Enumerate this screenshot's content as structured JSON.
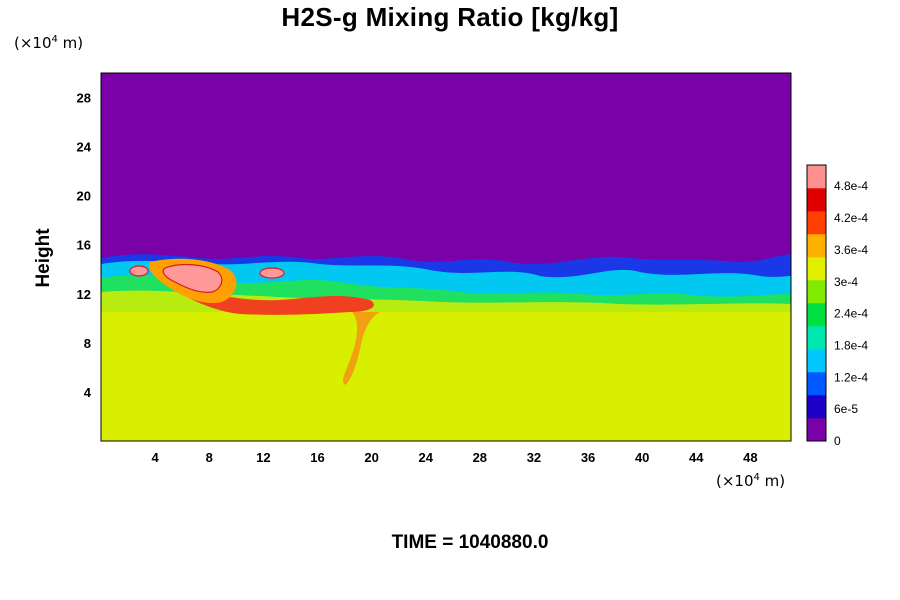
{
  "chart_data": {
    "type": "heatmap",
    "title": "H2S-g Mixing Ratio [kg/kg]",
    "ylabel": "Height",
    "x_unit_prefix": "(×10",
    "x_unit_exp": "4",
    "x_unit_suffix": " m)",
    "y_unit_prefix": "(×10",
    "y_unit_exp": "4",
    "y_unit_suffix": " m)",
    "x_ticks": [
      "4",
      "8",
      "12",
      "16",
      "20",
      "24",
      "28",
      "32",
      "36",
      "40",
      "44",
      "48"
    ],
    "y_ticks": [
      "4",
      "8",
      "12",
      "16",
      "20",
      "24",
      "28"
    ],
    "xlim": [
      0,
      51
    ],
    "ylim": [
      0,
      30
    ],
    "colorbar": {
      "labels": [
        "0",
        "6e-5",
        "1.2e-4",
        "1.8e-4",
        "2.4e-4",
        "3e-4",
        "3.6e-4",
        "4.2e-4",
        "4.8e-4"
      ],
      "min": 0,
      "max": 0.00052,
      "colors": [
        "#7a00a8",
        "#1c00c8",
        "#0058ff",
        "#00c8ff",
        "#00e8b0",
        "#00e040",
        "#80ea00",
        "#e0f000",
        "#ffb000",
        "#ff4000",
        "#e00000",
        "#ff9090"
      ]
    },
    "fields": {
      "upper_layer_value": 0,
      "lower_layer_value": 0.00035,
      "interface_height_range": [
        10.5,
        15
      ]
    },
    "colors": {
      "upper": "#7a00a8",
      "lower": "#d8f000",
      "lower_variant": "#b8ec10"
    }
  },
  "time_label": "TIME = 1040880.0"
}
